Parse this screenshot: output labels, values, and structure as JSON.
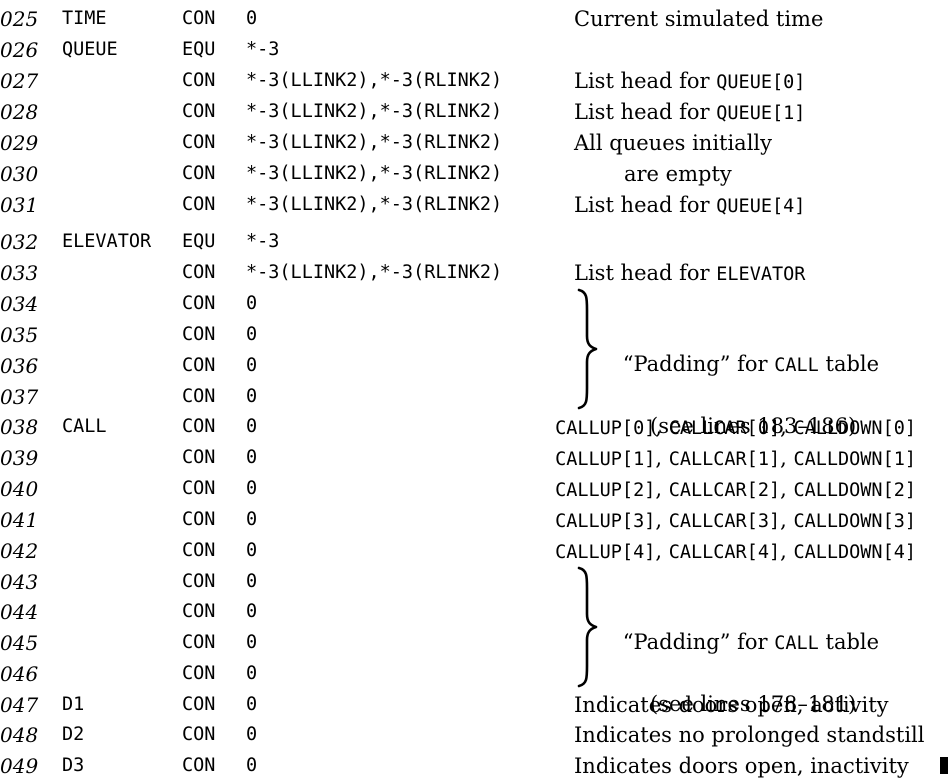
{
  "lines": [
    {
      "num": "025",
      "loc": "TIME",
      "op": "CON",
      "addr": "0",
      "comment": "Current simulated time"
    },
    {
      "num": "026",
      "loc": "QUEUE",
      "op": "EQU",
      "addr": "*-3",
      "comment": ""
    },
    {
      "num": "027",
      "loc": "",
      "op": "CON",
      "addr": "*-3(LLINK2),*-3(RLINK2)",
      "comment_pre": "List head for ",
      "comment_code": "QUEUE[0]"
    },
    {
      "num": "028",
      "loc": "",
      "op": "CON",
      "addr": "*-3(LLINK2),*-3(RLINK2)",
      "comment_pre": "List head for ",
      "comment_code": "QUEUE[1]"
    },
    {
      "num": "029",
      "loc": "",
      "op": "CON",
      "addr": "*-3(LLINK2),*-3(RLINK2)",
      "comment": "All queues initially"
    },
    {
      "num": "030",
      "loc": "",
      "op": "CON",
      "addr": "*-3(LLINK2),*-3(RLINK2)",
      "comment": "are empty"
    },
    {
      "num": "031",
      "loc": "",
      "op": "CON",
      "addr": "*-3(LLINK2),*-3(RLINK2)",
      "comment_pre": "List head for ",
      "comment_code": "QUEUE[4]"
    },
    {
      "num": "032",
      "loc": "ELEVATOR",
      "op": "EQU",
      "addr": "*-3",
      "comment": ""
    },
    {
      "num": "033",
      "loc": "",
      "op": "CON",
      "addr": "*-3(LLINK2),*-3(RLINK2)",
      "comment_pre": "List head for ",
      "comment_code": "ELEVATOR"
    },
    {
      "num": "034",
      "loc": "",
      "op": "CON",
      "addr": "0",
      "comment": ""
    },
    {
      "num": "035",
      "loc": "",
      "op": "CON",
      "addr": "0",
      "comment": ""
    },
    {
      "num": "036",
      "loc": "",
      "op": "CON",
      "addr": "0",
      "comment": ""
    },
    {
      "num": "037",
      "loc": "",
      "op": "CON",
      "addr": "0",
      "comment": ""
    },
    {
      "num": "038",
      "loc": "CALL",
      "op": "CON",
      "addr": "0",
      "call": [
        "CALLUP[0]",
        "CALLCAR[0]",
        "CALLDOWN[0]"
      ]
    },
    {
      "num": "039",
      "loc": "",
      "op": "CON",
      "addr": "0",
      "call": [
        "CALLUP[1]",
        "CALLCAR[1]",
        "CALLDOWN[1]"
      ]
    },
    {
      "num": "040",
      "loc": "",
      "op": "CON",
      "addr": "0",
      "call": [
        "CALLUP[2]",
        "CALLCAR[2]",
        "CALLDOWN[2]"
      ]
    },
    {
      "num": "041",
      "loc": "",
      "op": "CON",
      "addr": "0",
      "call": [
        "CALLUP[3]",
        "CALLCAR[3]",
        "CALLDOWN[3]"
      ]
    },
    {
      "num": "042",
      "loc": "",
      "op": "CON",
      "addr": "0",
      "call": [
        "CALLUP[4]",
        "CALLCAR[4]",
        "CALLDOWN[4]"
      ]
    },
    {
      "num": "043",
      "loc": "",
      "op": "CON",
      "addr": "0",
      "comment": ""
    },
    {
      "num": "044",
      "loc": "",
      "op": "CON",
      "addr": "0",
      "comment": ""
    },
    {
      "num": "045",
      "loc": "",
      "op": "CON",
      "addr": "0",
      "comment": ""
    },
    {
      "num": "046",
      "loc": "",
      "op": "CON",
      "addr": "0",
      "comment": ""
    },
    {
      "num": "047",
      "loc": "D1",
      "op": "CON",
      "addr": "0",
      "comment": "Indicates doors open, activity"
    },
    {
      "num": "048",
      "loc": "D2",
      "op": "CON",
      "addr": "0",
      "comment": "Indicates no prolonged standstill"
    },
    {
      "num": "049",
      "loc": "D3",
      "op": "CON",
      "addr": "0",
      "comment": "Indicates doors open, inactivity"
    }
  ],
  "padding_notes": [
    {
      "pre": "“Padding” for ",
      "code": "CALL",
      "post": " table",
      "second": "(see lines 183–186)"
    },
    {
      "pre": "“Padding” for ",
      "code": "CALL",
      "post": " table",
      "second": "(see lines 178–181)"
    }
  ]
}
